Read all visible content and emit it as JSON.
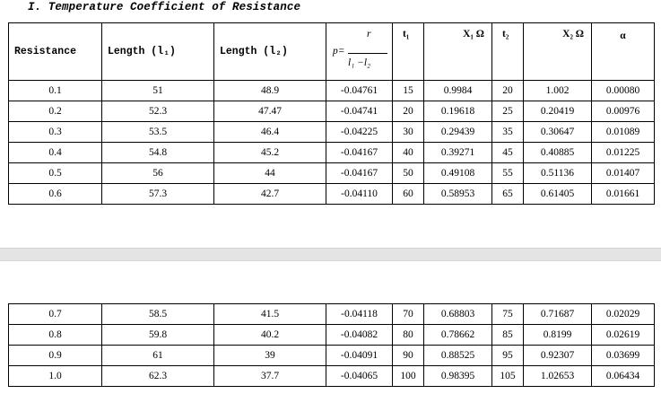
{
  "document": {
    "title": "I. Temperature Coefficient of Resistance"
  },
  "table": {
    "headers": {
      "resistance": "Resistance",
      "length1": "Length (l₁)",
      "length2": "Length (l₂)",
      "p_numerator": "r",
      "p_lhs": "p=",
      "p_denominator": "l₁ −l₂",
      "t1": "t₁",
      "x1": "X₁ Ω",
      "t2": "t₂",
      "x2": "X₂ Ω",
      "alpha": "α"
    },
    "rows_page1": [
      [
        "0.1",
        "51",
        "48.9",
        "-0.04761",
        "15",
        "0.9984",
        "20",
        "1.002",
        "0.00080"
      ],
      [
        "0.2",
        "52.3",
        "47.47",
        "-0.04741",
        "20",
        "0.19618",
        "25",
        "0.20419",
        "0.00976"
      ],
      [
        "0.3",
        "53.5",
        "46.4",
        "-0.04225",
        "30",
        "0.29439",
        "35",
        "0.30647",
        "0.01089"
      ],
      [
        "0.4",
        "54.8",
        "45.2",
        "-0.04167",
        "40",
        "0.39271",
        "45",
        "0.40885",
        "0.01225"
      ],
      [
        "0.5",
        "56",
        "44",
        "-0.04167",
        "50",
        "0.49108",
        "55",
        "0.51136",
        "0.01407"
      ],
      [
        "0.6",
        "57.3",
        "42.7",
        "-0.04110",
        "60",
        "0.58953",
        "65",
        "0.61405",
        "0.01661"
      ]
    ],
    "rows_page2": [
      [
        "0.7",
        "58.5",
        "41.5",
        "-0.04118",
        "70",
        "0.68803",
        "75",
        "0.71687",
        "0.02029"
      ],
      [
        "0.8",
        "59.8",
        "40.2",
        "-0.04082",
        "80",
        "0.78662",
        "85",
        "0.8199",
        "0.02619"
      ],
      [
        "0.9",
        "61",
        "39",
        "-0.04091",
        "90",
        "0.88525",
        "95",
        "0.92307",
        "0.03699"
      ],
      [
        "1.0",
        "62.3",
        "37.7",
        "-0.04065",
        "100",
        "0.98395",
        "105",
        "1.02653",
        "0.06434"
      ]
    ]
  }
}
